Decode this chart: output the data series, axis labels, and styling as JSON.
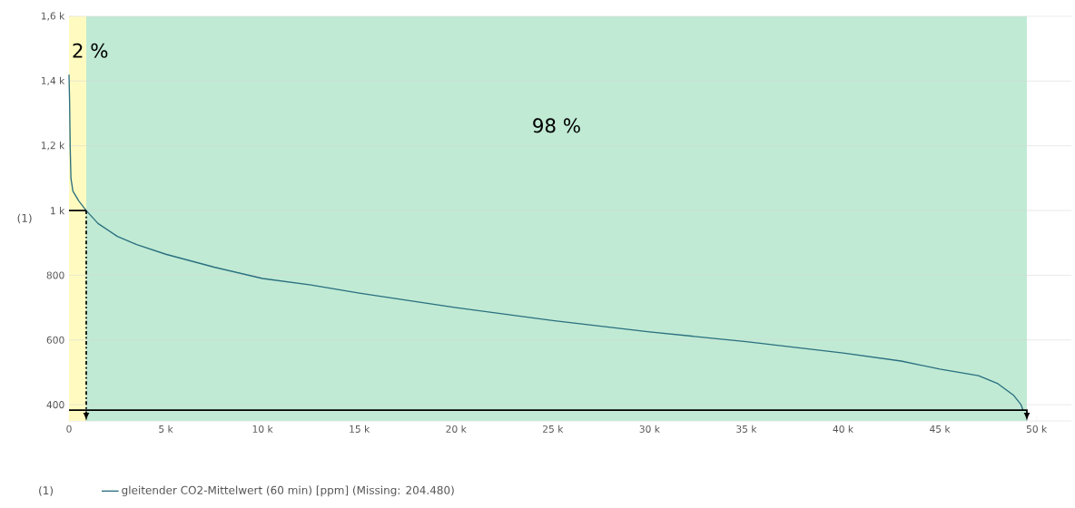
{
  "chart_data": {
    "type": "line",
    "ylabel": "(1)",
    "legend_title": "(1)",
    "x": [
      0,
      30,
      60,
      100,
      200,
      500,
      890,
      1500,
      2500,
      3500,
      5000,
      7500,
      10000,
      12500,
      15000,
      20000,
      25000,
      30000,
      35000,
      40000,
      43000,
      45000,
      47000,
      48000,
      48800,
      49200,
      49300
    ],
    "series": [
      {
        "name": "gleitender CO2-Mittelwert (60 min) [ppm]  (Missing: 204.480)",
        "color": "#2a6f7f",
        "values": [
          1420,
          1340,
          1200,
          1100,
          1060,
          1030,
          1000,
          960,
          920,
          895,
          865,
          825,
          790,
          770,
          745,
          700,
          660,
          625,
          595,
          560,
          535,
          510,
          490,
          465,
          430,
          400,
          383
        ]
      }
    ],
    "xlim": [
      0,
      51800
    ],
    "ylim": [
      350,
      1600
    ],
    "xticks": [
      0,
      {
        "value": 5000,
        "label": "5 k"
      },
      {
        "value": 10000,
        "label": "10 k"
      },
      {
        "value": 15000,
        "label": "15 k"
      },
      {
        "value": 20000,
        "label": "20 k"
      },
      {
        "value": 25000,
        "label": "25 k"
      },
      {
        "value": 30000,
        "label": "30 k"
      },
      {
        "value": 35000,
        "label": "35 k"
      },
      {
        "value": 40000,
        "label": "40 k"
      },
      {
        "value": 45000,
        "label": "45 k"
      },
      {
        "value": 50000,
        "label": "50 k"
      }
    ],
    "yticks": [
      400,
      600,
      800,
      {
        "value": 1000,
        "label": "1 k"
      },
      {
        "value": 1200,
        "label": "1,2 k"
      },
      {
        "value": 1400,
        "label": "1,4 k"
      },
      {
        "value": 1600,
        "label": "1,6 k"
      }
    ],
    "bands": [
      {
        "axis": "x",
        "from": 0,
        "to": 890,
        "label": "2 %",
        "color": "#fffbc0"
      },
      {
        "axis": "x",
        "from": 890,
        "to": 49500,
        "label": "98 %",
        "color": "#c0ead4"
      }
    ],
    "grid": "y",
    "legend": "bottom left",
    "marker": "none",
    "line_style": "solid"
  }
}
